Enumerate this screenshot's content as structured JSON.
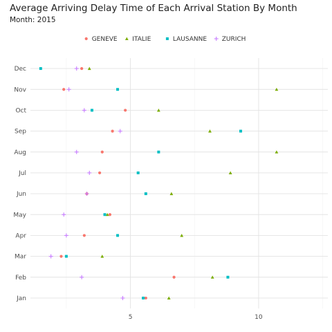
{
  "title": "Average Arriving Delay Time of Each Arrival Station By Month",
  "subtitle": "Month: 2015",
  "chart_data": {
    "type": "scatter",
    "categories": [
      "Jan",
      "Feb",
      "Mar",
      "Apr",
      "May",
      "Jun",
      "Jul",
      "Aug",
      "Sep",
      "Oct",
      "Nov",
      "Dec"
    ],
    "xlim": [
      1.1,
      12.7
    ],
    "x_ticks": [
      5,
      10
    ],
    "grid": true,
    "legend_position": "top",
    "series": [
      {
        "name": "GENEVE",
        "color": "#F8766D",
        "marker": "circle",
        "values": [
          5.6,
          6.7,
          2.3,
          3.2,
          4.2,
          3.3,
          3.8,
          3.9,
          4.3,
          4.8,
          2.4,
          3.1
        ]
      },
      {
        "name": "ITALIE",
        "color": "#7CAE00",
        "marker": "triangle",
        "values": [
          6.5,
          8.2,
          3.9,
          7.0,
          4.1,
          6.6,
          8.9,
          10.7,
          8.1,
          6.1,
          10.7,
          3.4
        ]
      },
      {
        "name": "LAUSANNE",
        "color": "#00BFC4",
        "marker": "square",
        "values": [
          5.5,
          8.8,
          2.5,
          4.5,
          4.0,
          5.6,
          5.3,
          6.1,
          9.3,
          3.5,
          4.5,
          1.5
        ]
      },
      {
        "name": "ZURICH",
        "color": "#C77CFF",
        "marker": "plus",
        "values": [
          4.7,
          3.1,
          1.9,
          2.5,
          2.4,
          3.3,
          3.4,
          2.9,
          4.6,
          3.2,
          2.6,
          2.9
        ]
      }
    ]
  }
}
